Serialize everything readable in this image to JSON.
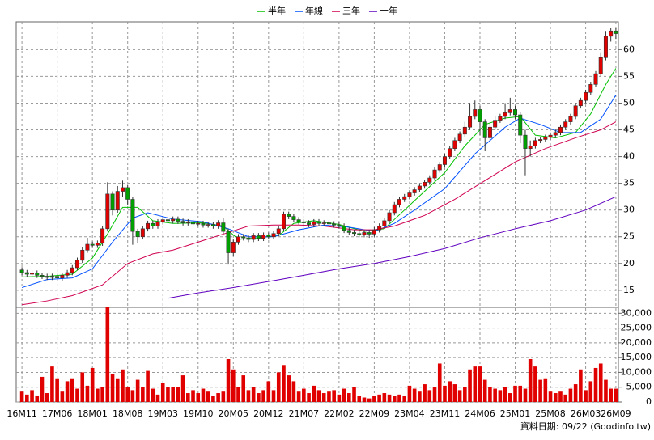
{
  "chart_data": {
    "type": "candlestick",
    "footer": "資料日期: 09/22 (Goodinfo.tw)",
    "grid": true,
    "up_color": "#e00000",
    "down_color": "#00a000",
    "ylim": [
      11.8,
      65.2
    ],
    "yticks": [
      15,
      20,
      25,
      30,
      35,
      40,
      45,
      50,
      55,
      60
    ],
    "volume_ylim": [
      0,
      32000
    ],
    "volume_yticks": [
      0,
      {
        "value": 5000,
        "label": "5,000"
      },
      {
        "value": 10000,
        "label": "10,000"
      },
      {
        "value": 15000,
        "label": "15,000"
      },
      {
        "value": 20000,
        "label": "20,000"
      },
      {
        "value": 25000,
        "label": "25,000"
      },
      {
        "value": 30000,
        "label": "30,000"
      }
    ],
    "xlim": [
      0,
      118
    ],
    "xticks": [
      {
        "value": 0,
        "label": "16M11"
      },
      {
        "value": 7,
        "label": "17M06"
      },
      {
        "value": 14,
        "label": "18M01"
      },
      {
        "value": 21,
        "label": "18M08"
      },
      {
        "value": 28,
        "label": "19M03"
      },
      {
        "value": 35,
        "label": "19M10"
      },
      {
        "value": 42,
        "label": "20M05"
      },
      {
        "value": 49,
        "label": "20M12"
      },
      {
        "value": 56,
        "label": "21M07"
      },
      {
        "value": 63,
        "label": "22M02"
      },
      {
        "value": 70,
        "label": "22M09"
      },
      {
        "value": 77,
        "label": "23M04"
      },
      {
        "value": 84,
        "label": "23M11"
      },
      {
        "value": 91,
        "label": "24M06"
      },
      {
        "value": 98,
        "label": "25M01"
      },
      {
        "value": 105,
        "label": "25M08"
      },
      {
        "value": 112,
        "label": "26M03"
      },
      {
        "value": 118,
        "label": "26M09"
      }
    ],
    "candles": {
      "open": [
        18.8,
        18.3,
        18.0,
        18.2,
        17.8,
        17.6,
        17.4,
        17.6,
        17.3,
        17.8,
        18.3,
        19.2,
        20.6,
        22.5,
        23.6,
        23.4,
        23.8,
        26.5,
        33.0,
        30.0,
        33.5,
        34.2,
        32.0,
        26.0,
        25.0,
        26.5,
        27.5,
        27.0,
        27.8,
        28.2,
        28.0,
        28.3,
        27.9,
        27.6,
        27.8,
        27.4,
        27.5,
        27.2,
        27.3,
        27.0,
        27.6,
        26.0,
        22.0,
        24.0,
        25.0,
        24.8,
        24.5,
        25.2,
        24.7,
        25.3,
        25.0,
        25.6,
        26.5,
        29.2,
        28.8,
        28.2,
        27.8,
        27.6,
        27.3,
        27.8,
        27.5,
        27.6,
        27.4,
        27.2,
        27.0,
        26.2,
        25.8,
        25.6,
        25.4,
        25.8,
        25.5,
        26.3,
        27.0,
        28.0,
        29.5,
        31.0,
        32.0,
        32.5,
        33.2,
        33.8,
        34.5,
        35.2,
        36.0,
        37.5,
        38.5,
        40.0,
        41.5,
        43.0,
        44.2,
        45.5,
        47.5,
        48.8,
        46.5,
        43.5,
        45.5,
        46.8,
        47.5,
        48.2,
        48.8,
        47.8,
        44.0,
        41.5,
        42.0,
        43.0,
        43.2,
        43.6,
        44.0,
        44.5,
        45.5,
        46.5,
        47.5,
        49.5,
        50.5,
        52.0,
        53.5,
        55.5,
        58.5,
        62.5,
        63.5
      ],
      "high": [
        19.3,
        18.8,
        18.7,
        18.7,
        18.3,
        18.1,
        18.1,
        18.1,
        18.3,
        18.8,
        19.7,
        21.1,
        23.0,
        24.8,
        24.1,
        24.3,
        27.0,
        35.2,
        33.5,
        34.5,
        35.5,
        34.7,
        32.5,
        26.5,
        27.0,
        28.0,
        28.0,
        28.3,
        28.7,
        28.7,
        28.8,
        28.8,
        28.4,
        28.3,
        28.3,
        28.0,
        28.0,
        27.8,
        27.8,
        28.1,
        28.5,
        26.5,
        24.5,
        25.5,
        25.5,
        25.3,
        25.7,
        25.7,
        25.8,
        25.8,
        26.1,
        27.0,
        29.7,
        29.7,
        29.3,
        28.7,
        28.3,
        28.1,
        28.3,
        28.3,
        28.1,
        28.1,
        27.9,
        27.7,
        27.5,
        26.7,
        26.3,
        26.1,
        26.3,
        26.3,
        26.8,
        27.5,
        28.5,
        30.0,
        31.5,
        32.5,
        33.0,
        33.7,
        34.3,
        35.0,
        35.7,
        36.5,
        38.0,
        39.0,
        40.5,
        42.0,
        43.5,
        44.7,
        46.5,
        50.0,
        50.5,
        49.5,
        47.0,
        46.5,
        47.5,
        48.0,
        50.0,
        51.0,
        49.5,
        48.3,
        45.0,
        43.0,
        43.5,
        43.7,
        44.1,
        44.5,
        45.0,
        46.0,
        47.0,
        48.0,
        50.0,
        51.0,
        52.5,
        54.0,
        56.0,
        59.5,
        63.5,
        64.0,
        64.0
      ],
      "low": [
        17.8,
        17.5,
        17.5,
        17.3,
        17.1,
        16.9,
        16.9,
        16.8,
        16.8,
        17.3,
        17.8,
        18.7,
        20.1,
        22.0,
        22.9,
        22.9,
        23.3,
        26.0,
        29.0,
        29.5,
        32.5,
        31.0,
        23.5,
        23.8,
        24.5,
        26.0,
        26.5,
        26.5,
        27.3,
        27.5,
        27.5,
        27.4,
        27.1,
        27.1,
        26.9,
        26.9,
        26.7,
        26.7,
        26.5,
        26.5,
        25.5,
        19.8,
        21.5,
        23.5,
        24.3,
        24.0,
        24.0,
        24.2,
        24.2,
        24.5,
        24.5,
        25.1,
        26.0,
        28.3,
        27.7,
        27.3,
        27.1,
        26.8,
        26.8,
        27.0,
        27.0,
        26.9,
        26.7,
        26.5,
        25.7,
        25.3,
        25.1,
        24.9,
        24.9,
        24.8,
        25.0,
        25.8,
        26.5,
        27.5,
        29.0,
        30.5,
        31.5,
        32.0,
        32.7,
        33.3,
        34.0,
        34.7,
        35.5,
        37.0,
        38.0,
        39.5,
        41.0,
        42.5,
        43.7,
        45.0,
        47.0,
        44.0,
        41.0,
        43.0,
        45.0,
        46.3,
        47.0,
        47.7,
        47.0,
        42.5,
        36.5,
        40.0,
        41.5,
        42.5,
        42.7,
        43.1,
        43.5,
        44.0,
        45.0,
        46.0,
        47.0,
        49.0,
        50.0,
        51.5,
        53.0,
        55.0,
        58.0,
        61.5,
        62.0
      ],
      "close": [
        18.3,
        18.0,
        18.2,
        17.8,
        17.6,
        17.4,
        17.6,
        17.3,
        17.8,
        18.3,
        19.2,
        20.6,
        22.5,
        23.6,
        23.4,
        23.8,
        26.5,
        33.0,
        30.0,
        33.5,
        34.2,
        32.0,
        26.0,
        25.0,
        26.5,
        27.5,
        27.0,
        27.8,
        28.2,
        28.0,
        28.3,
        27.9,
        27.6,
        27.8,
        27.4,
        27.5,
        27.2,
        27.3,
        27.0,
        27.6,
        26.0,
        22.0,
        24.0,
        25.0,
        24.8,
        24.5,
        25.2,
        24.7,
        25.3,
        25.0,
        25.6,
        26.5,
        29.2,
        28.8,
        28.2,
        27.8,
        27.6,
        27.3,
        27.8,
        27.5,
        27.6,
        27.4,
        27.2,
        27.0,
        26.2,
        25.8,
        25.6,
        25.4,
        25.8,
        25.5,
        26.3,
        27.0,
        28.0,
        29.5,
        31.0,
        32.0,
        32.5,
        33.2,
        33.8,
        34.5,
        35.2,
        36.0,
        37.5,
        38.5,
        40.0,
        41.5,
        43.0,
        44.2,
        45.5,
        47.5,
        48.8,
        46.5,
        43.5,
        45.5,
        46.8,
        47.5,
        48.2,
        48.8,
        47.8,
        44.0,
        41.5,
        42.0,
        43.0,
        43.2,
        43.6,
        44.0,
        44.5,
        45.5,
        46.5,
        47.5,
        49.5,
        50.5,
        52.0,
        53.5,
        55.5,
        58.5,
        62.5,
        63.5,
        63.0
      ]
    },
    "volume": {
      "color": "#e00000",
      "values": [
        3500,
        2500,
        4000,
        2200,
        8500,
        3000,
        12000,
        8000,
        3500,
        7000,
        8000,
        4500,
        10000,
        5500,
        11500,
        4500,
        5000,
        32000,
        9500,
        8000,
        11000,
        5000,
        4000,
        7500,
        5000,
        10500,
        4500,
        2500,
        6500,
        5000,
        5000,
        5000,
        9000,
        3000,
        4000,
        3000,
        4500,
        3500,
        2000,
        3000,
        3500,
        14500,
        11000,
        5000,
        9000,
        4000,
        5000,
        3000,
        4000,
        7000,
        4000,
        10000,
        12500,
        9000,
        7000,
        3500,
        4500,
        3000,
        5500,
        4000,
        3000,
        3500,
        4000,
        2500,
        4500,
        3000,
        5000,
        2000,
        1500,
        1200,
        2000,
        2500,
        3000,
        2500,
        2000,
        2500,
        2000,
        5500,
        4500,
        3500,
        6000,
        4000,
        5000,
        13000,
        5500,
        7000,
        6000,
        4000,
        5000,
        11000,
        12000,
        12000,
        7500,
        5000,
        4500,
        4000,
        5000,
        3000,
        5500,
        5500,
        4500,
        14500,
        12000,
        7500,
        8000,
        3500,
        3000,
        3500,
        2500,
        4500,
        6000,
        11000,
        4000,
        7000,
        11500,
        13000,
        7500,
        4500,
        4500
      ]
    },
    "ma_series": [
      {
        "name": "半年",
        "color": "#00c000",
        "x": [
          0,
          5,
          10,
          14,
          17,
          20,
          23,
          26,
          30,
          36,
          40,
          43,
          47,
          51,
          54,
          58,
          63,
          68,
          72,
          76,
          80,
          84,
          88,
          92,
          96,
          99,
          102,
          106,
          110,
          113,
          116,
          118
        ],
        "values": [
          17.5,
          17.6,
          18.0,
          21.0,
          25.5,
          30.5,
          30.5,
          28.0,
          27.5,
          27.6,
          27.0,
          24.5,
          24.8,
          25.2,
          27.5,
          28.0,
          27.3,
          26.0,
          26.5,
          30.0,
          33.5,
          37.0,
          42.0,
          46.0,
          47.2,
          47.5,
          44.0,
          43.5,
          44.5,
          48.0,
          53.5,
          56.5
        ]
      },
      {
        "name": "年線",
        "color": "#0050ff",
        "x": [
          0,
          5,
          10,
          14,
          18,
          22,
          25,
          30,
          36,
          41,
          45,
          50,
          55,
          60,
          65,
          70,
          74,
          78,
          84,
          90,
          96,
          99,
          103,
          107,
          111,
          115,
          118
        ],
        "values": [
          15.5,
          17.0,
          17.3,
          19.0,
          24.0,
          28.5,
          29.5,
          28.3,
          27.8,
          26.5,
          25.0,
          25.0,
          26.3,
          27.2,
          26.8,
          26.0,
          27.5,
          30.0,
          34.0,
          40.5,
          45.5,
          47.2,
          46.0,
          44.5,
          44.5,
          47.0,
          51.5
        ]
      },
      {
        "name": "三年",
        "color": "#d00050",
        "x": [
          0,
          5,
          10,
          16,
          21,
          26,
          30,
          35,
          40,
          45,
          50,
          55,
          60,
          66,
          70,
          74,
          80,
          86,
          92,
          98,
          104,
          110,
          115,
          118
        ],
        "values": [
          12.3,
          13.0,
          14.0,
          16.0,
          20.0,
          21.8,
          22.5,
          24.0,
          25.5,
          27.0,
          27.2,
          27.2,
          27.0,
          26.3,
          26.3,
          27.0,
          29.0,
          32.0,
          35.5,
          39.0,
          41.5,
          43.5,
          45.0,
          46.5
        ]
      },
      {
        "name": "十年",
        "color": "#6000c0",
        "x": [
          29,
          35,
          42,
          50,
          56,
          63,
          70,
          77,
          84,
          91,
          98,
          105,
          112,
          118
        ],
        "values": [
          13.5,
          14.5,
          15.5,
          16.8,
          17.8,
          19.0,
          20.0,
          21.3,
          22.8,
          24.8,
          26.5,
          28.0,
          30.0,
          32.5
        ]
      }
    ]
  }
}
